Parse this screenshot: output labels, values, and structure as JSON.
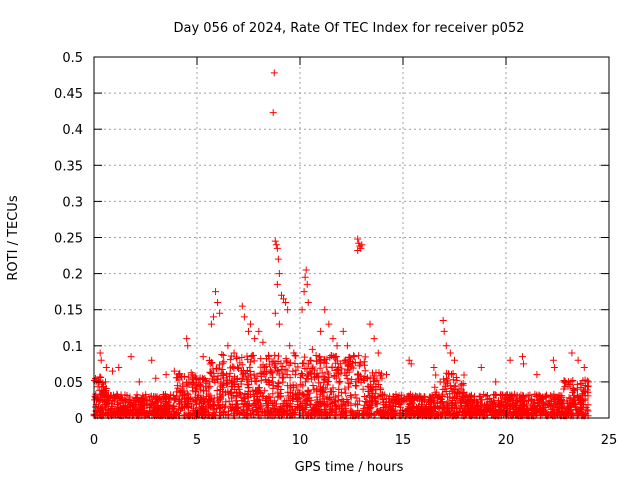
{
  "chart_data": {
    "type": "scatter",
    "title": "Day 056 of 2024, Rate Of TEC Index for receiver p052",
    "xlabel": "GPS time / hours",
    "ylabel": "ROTI / TECUs",
    "xlim": [
      0,
      25
    ],
    "ylim": [
      0,
      0.5
    ],
    "xticks": [
      0,
      5,
      10,
      15,
      20,
      25
    ],
    "xtick_labels": [
      "0",
      "5",
      "10",
      "15",
      "20",
      "25"
    ],
    "yticks": [
      0,
      0.05,
      0.1,
      0.15,
      0.2,
      0.25,
      0.3,
      0.35,
      0.4,
      0.45,
      0.5
    ],
    "ytick_labels": [
      "0",
      "0.05",
      "0.1",
      "0.15",
      "0.2",
      "0.25",
      "0.3",
      "0.35",
      "0.4",
      "0.45",
      "0.5"
    ],
    "grid": true,
    "marker": "+",
    "marker_color": "#ff0000",
    "series": [
      {
        "name": "ROTI",
        "points": [
          [
            8.75,
            0.478
          ],
          [
            8.7,
            0.423
          ],
          [
            8.8,
            0.245
          ],
          [
            8.85,
            0.24
          ],
          [
            8.9,
            0.235
          ],
          [
            8.95,
            0.22
          ],
          [
            9.0,
            0.2
          ],
          [
            8.9,
            0.185
          ],
          [
            9.1,
            0.17
          ],
          [
            9.2,
            0.165
          ],
          [
            9.3,
            0.16
          ],
          [
            9.4,
            0.15
          ],
          [
            8.8,
            0.145
          ],
          [
            9.0,
            0.13
          ],
          [
            10.3,
            0.205
          ],
          [
            10.25,
            0.195
          ],
          [
            10.35,
            0.185
          ],
          [
            10.2,
            0.175
          ],
          [
            10.4,
            0.16
          ],
          [
            10.1,
            0.15
          ],
          [
            12.8,
            0.248
          ],
          [
            12.85,
            0.242
          ],
          [
            12.9,
            0.238
          ],
          [
            12.95,
            0.235
          ],
          [
            12.8,
            0.232
          ],
          [
            13.0,
            0.24
          ],
          [
            5.9,
            0.175
          ],
          [
            6.0,
            0.16
          ],
          [
            5.8,
            0.14
          ],
          [
            5.7,
            0.13
          ],
          [
            6.1,
            0.145
          ],
          [
            4.5,
            0.11
          ],
          [
            4.55,
            0.1
          ],
          [
            7.2,
            0.155
          ],
          [
            7.3,
            0.14
          ],
          [
            7.5,
            0.12
          ],
          [
            7.6,
            0.13
          ],
          [
            7.8,
            0.11
          ],
          [
            8.0,
            0.12
          ],
          [
            8.2,
            0.105
          ],
          [
            11.0,
            0.12
          ],
          [
            11.2,
            0.15
          ],
          [
            11.4,
            0.13
          ],
          [
            11.6,
            0.11
          ],
          [
            11.8,
            0.1
          ],
          [
            12.1,
            0.12
          ],
          [
            12.3,
            0.1
          ],
          [
            13.4,
            0.13
          ],
          [
            13.6,
            0.11
          ],
          [
            13.8,
            0.09
          ],
          [
            16.95,
            0.135
          ],
          [
            17.0,
            0.12
          ],
          [
            17.1,
            0.1
          ],
          [
            17.3,
            0.09
          ],
          [
            17.5,
            0.08
          ],
          [
            0.3,
            0.09
          ],
          [
            0.35,
            0.08
          ],
          [
            0.6,
            0.07
          ],
          [
            0.9,
            0.065
          ],
          [
            1.2,
            0.07
          ],
          [
            1.8,
            0.085
          ],
          [
            2.8,
            0.08
          ],
          [
            3.5,
            0.06
          ],
          [
            3.9,
            0.065
          ],
          [
            15.3,
            0.08
          ],
          [
            15.4,
            0.075
          ],
          [
            18.8,
            0.07
          ],
          [
            20.2,
            0.08
          ],
          [
            20.8,
            0.085
          ],
          [
            20.85,
            0.075
          ],
          [
            22.3,
            0.08
          ],
          [
            22.35,
            0.07
          ],
          [
            23.2,
            0.09
          ],
          [
            23.5,
            0.08
          ],
          [
            23.8,
            0.07
          ],
          [
            14.2,
            0.06
          ],
          [
            16.5,
            0.07
          ],
          [
            19.5,
            0.05
          ],
          [
            21.5,
            0.06
          ],
          [
            9.5,
            0.1
          ],
          [
            9.7,
            0.09
          ],
          [
            10.6,
            0.095
          ],
          [
            6.5,
            0.1
          ],
          [
            6.8,
            0.09
          ],
          [
            5.3,
            0.085
          ],
          [
            3.0,
            0.055
          ],
          [
            2.2,
            0.05
          ],
          [
            0.1,
            0.05
          ],
          [
            0.05,
            0.03
          ],
          [
            24.0,
            0.05
          ]
        ],
        "dense_baseline": {
          "x_range": [
            0,
            24
          ],
          "y_range": [
            0,
            0.05
          ]
        }
      }
    ]
  }
}
